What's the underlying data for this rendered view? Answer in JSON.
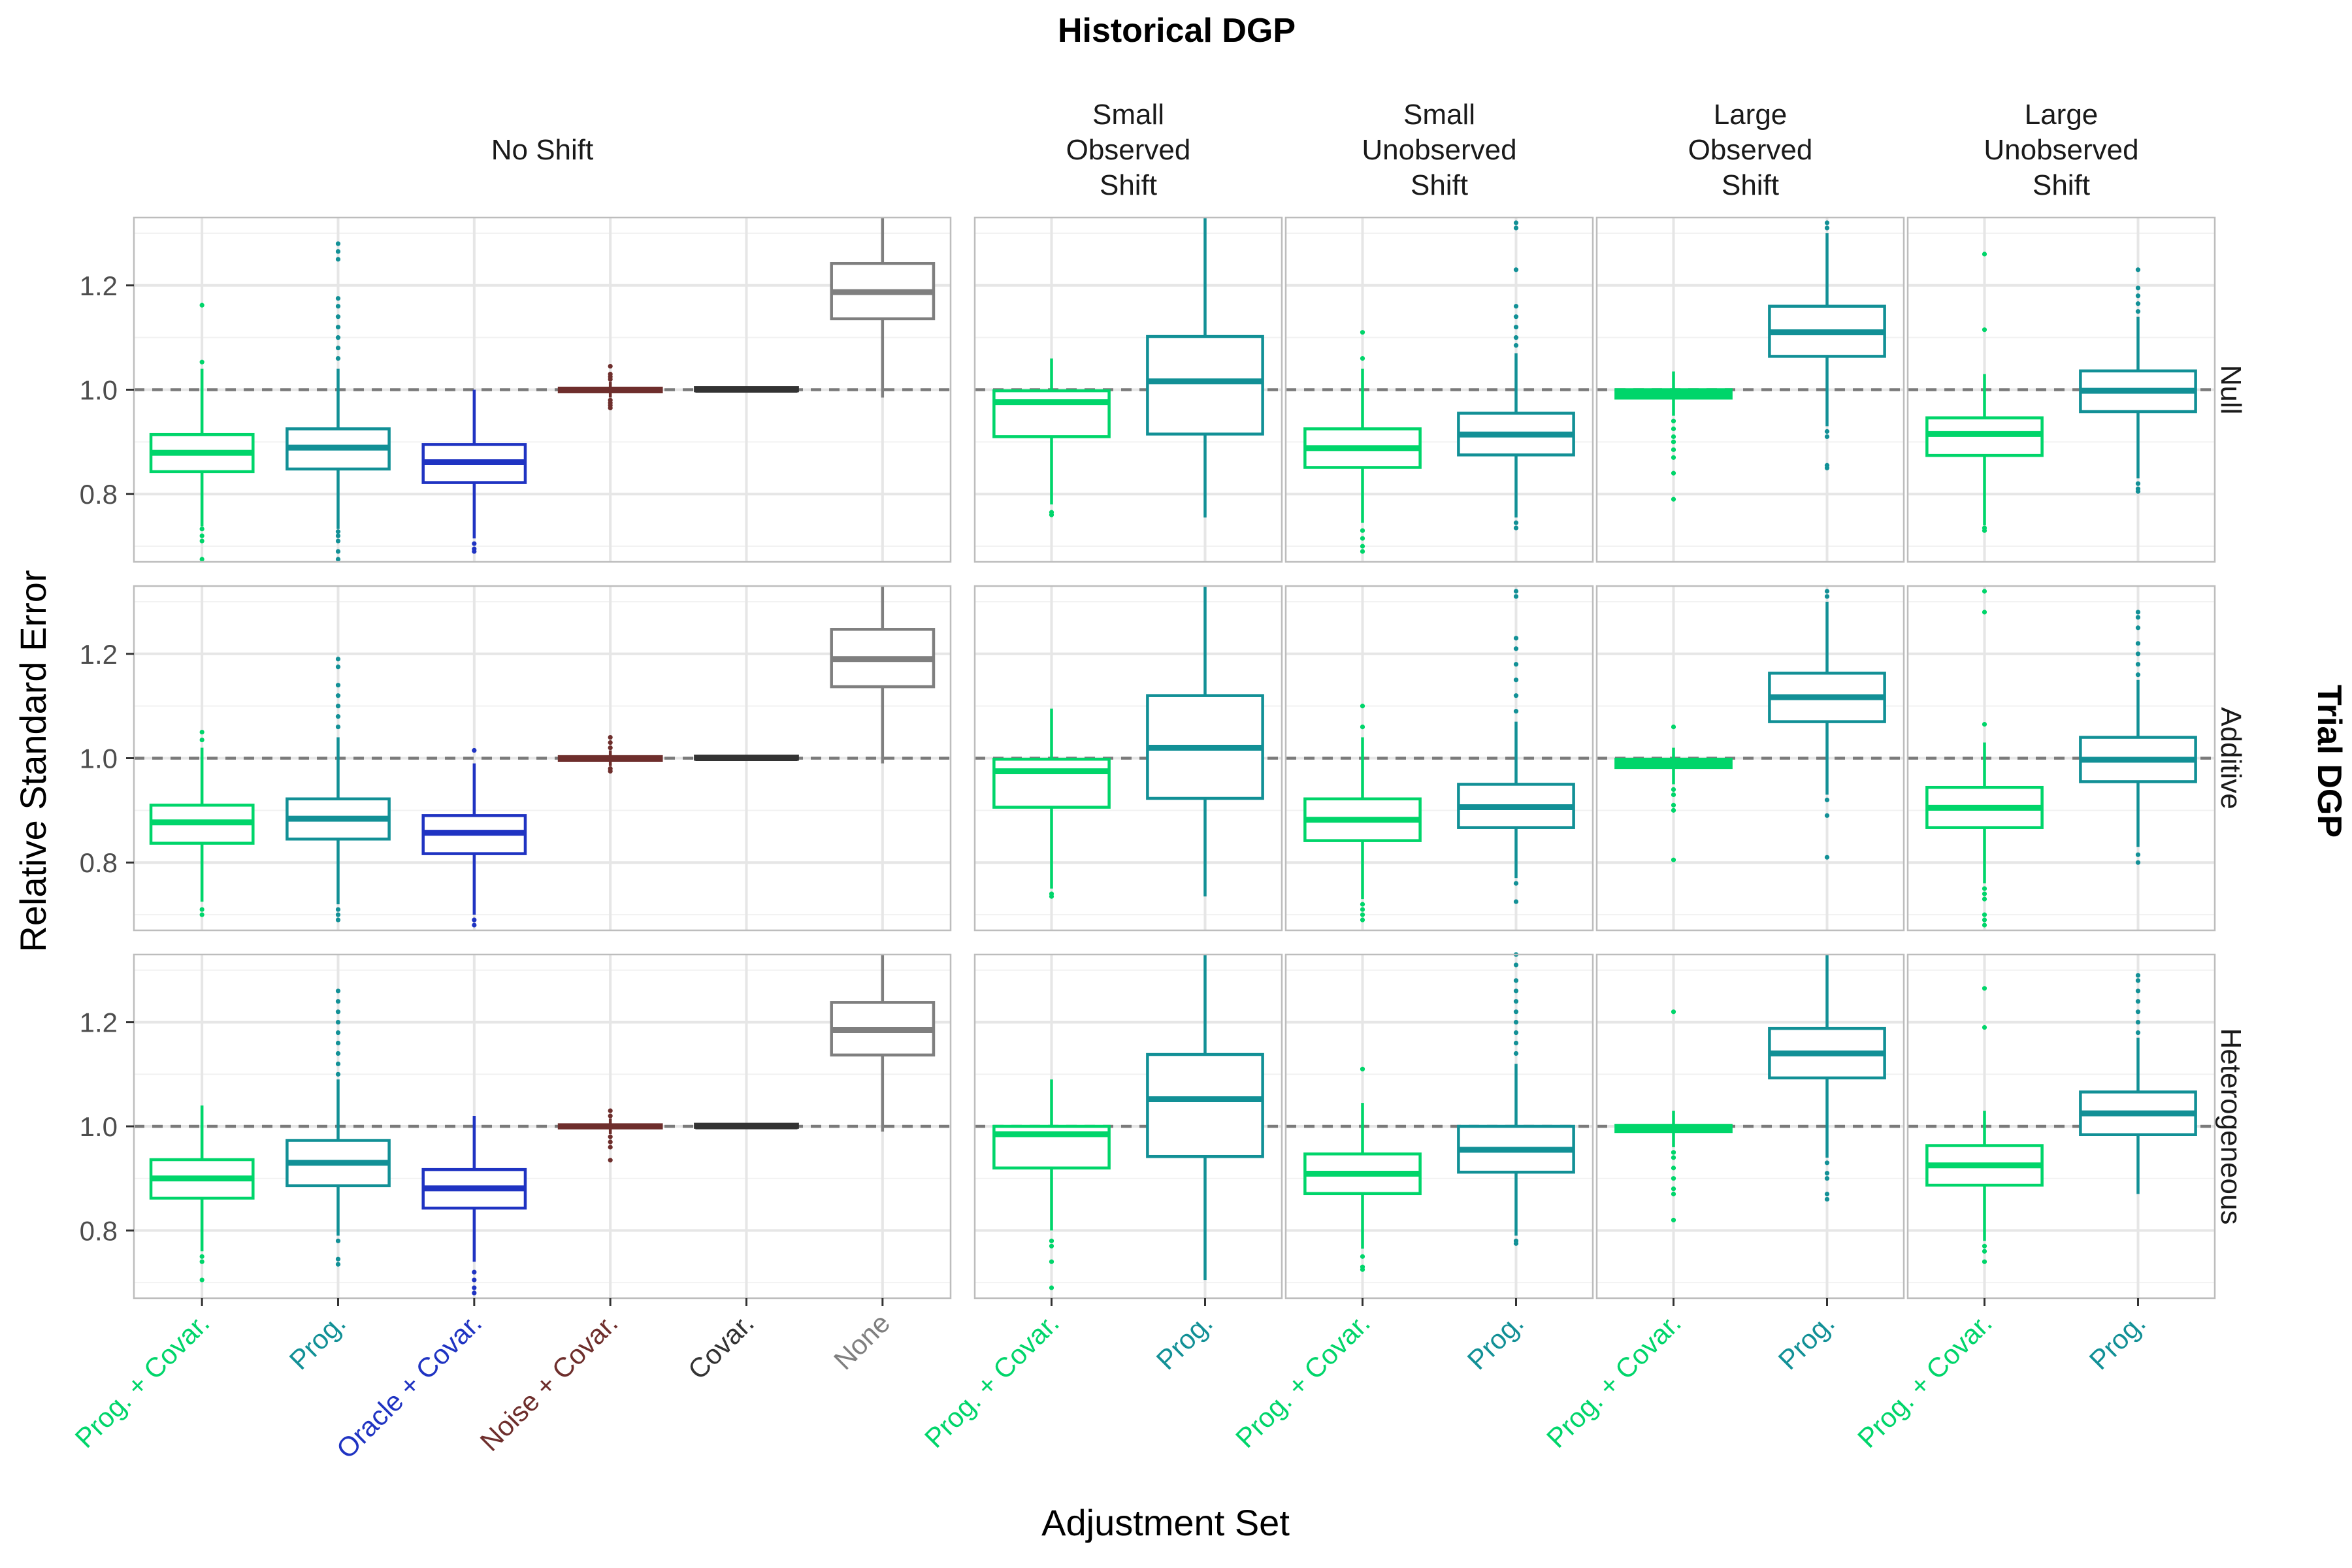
{
  "chart_data": {
    "type": "boxplot",
    "title": "Historical DGP",
    "xlabel": "Adjustment Set",
    "ylabel": "Relative Standard Error",
    "facet_row_title": "Trial DGP",
    "ylim": [
      0.67,
      1.33
    ],
    "yticks": [
      0.8,
      1.0,
      1.2
    ],
    "ytick_labels": [
      "0.8",
      "1.0",
      "1.2"
    ],
    "reference_line": 1.0,
    "colors": {
      "Prog. + Covar.": "#00D56A",
      "Prog.": "#129096",
      "Oracle + Covar.": "#1F33C2",
      "Noise + Covar.": "#6E2E2C",
      "Covar.": "#333333",
      "None": "#7F7F7F"
    },
    "columns": [
      {
        "title_lines": [
          "No Shift"
        ],
        "categories": [
          "Prog. + Covar.",
          "Prog.",
          "Oracle + Covar.",
          "Noise + Covar.",
          "Covar.",
          "None"
        ]
      },
      {
        "title_lines": [
          "Small",
          "Observed",
          "Shift"
        ],
        "categories": [
          "Prog. + Covar.",
          "Prog."
        ]
      },
      {
        "title_lines": [
          "Small",
          "Unobserved",
          "Shift"
        ],
        "categories": [
          "Prog. + Covar.",
          "Prog."
        ]
      },
      {
        "title_lines": [
          "Large",
          "Observed",
          "Shift"
        ],
        "categories": [
          "Prog. + Covar.",
          "Prog."
        ]
      },
      {
        "title_lines": [
          "Large",
          "Unobserved",
          "Shift"
        ],
        "categories": [
          "Prog. + Covar.",
          "Prog."
        ]
      }
    ],
    "rows": [
      "Null",
      "Additive",
      "Heterogeneous"
    ],
    "panels": [
      [
        [
          {
            "q1": 0.843,
            "median": 0.879,
            "q3": 0.914,
            "wlo": 0.738,
            "whi": 1.04,
            "outliers": [
              0.733,
              0.72,
              0.71,
              0.675,
              1.053,
              1.162
            ]
          },
          {
            "q1": 0.848,
            "median": 0.889,
            "q3": 0.925,
            "wlo": 0.733,
            "whi": 1.04,
            "outliers": [
              0.728,
              0.72,
              0.71,
              0.69,
              0.675,
              1.06,
              1.08,
              1.1,
              1.12,
              1.14,
              1.16,
              1.175,
              1.25,
              1.265,
              1.28
            ]
          },
          {
            "q1": 0.822,
            "median": 0.861,
            "q3": 0.895,
            "wlo": 0.715,
            "whi": 1.0,
            "outliers": [
              0.705,
              0.695,
              0.69
            ]
          },
          {
            "q1": 0.996,
            "median": 1.0,
            "q3": 1.003,
            "wlo": 0.985,
            "whi": 1.015,
            "outliers": [
              0.98,
              0.975,
              0.97,
              0.965,
              1.02,
              1.025,
              1.03,
              1.045
            ]
          },
          {
            "q1": 0.998,
            "median": 1.0,
            "q3": 1.004,
            "wlo": 0.998,
            "whi": 1.004,
            "outliers": []
          },
          {
            "q1": 1.136,
            "median": 1.187,
            "q3": 1.242,
            "wlo": 0.985,
            "whi": 1.33,
            "outliers": []
          }
        ],
        [
          {
            "q1": 0.91,
            "median": 0.976,
            "q3": 0.998,
            "wlo": 0.78,
            "whi": 1.06,
            "outliers": [
              0.765,
              0.76
            ]
          },
          {
            "q1": 0.915,
            "median": 1.016,
            "q3": 1.102,
            "wlo": 0.755,
            "whi": 1.33,
            "outliers": []
          }
        ],
        [
          {
            "q1": 0.851,
            "median": 0.888,
            "q3": 0.925,
            "wlo": 0.745,
            "whi": 1.04,
            "outliers": [
              0.73,
              0.715,
              0.7,
              0.69,
              1.06,
              1.11
            ]
          },
          {
            "q1": 0.875,
            "median": 0.914,
            "q3": 0.955,
            "wlo": 0.755,
            "whi": 1.07,
            "outliers": [
              0.745,
              0.735,
              1.085,
              1.1,
              1.12,
              1.14,
              1.16,
              1.23,
              1.31,
              1.32
            ]
          }
        ],
        [
          {
            "q1": 0.984,
            "median": 0.992,
            "q3": 1.0,
            "wlo": 0.95,
            "whi": 1.035,
            "outliers": [
              0.94,
              0.925,
              0.91,
              0.9,
              0.885,
              0.87,
              0.84,
              0.79
            ]
          },
          {
            "q1": 1.064,
            "median": 1.11,
            "q3": 1.16,
            "wlo": 0.93,
            "whi": 1.3,
            "outliers": [
              0.92,
              0.91,
              0.855,
              0.85,
              1.31,
              1.32
            ]
          }
        ],
        [
          {
            "q1": 0.874,
            "median": 0.915,
            "q3": 0.946,
            "wlo": 0.74,
            "whi": 1.03,
            "outliers": [
              0.735,
              0.73,
              1.115,
              1.26
            ]
          },
          {
            "q1": 0.958,
            "median": 0.998,
            "q3": 1.036,
            "wlo": 0.83,
            "whi": 1.14,
            "outliers": [
              0.82,
              0.81,
              0.805,
              1.15,
              1.165,
              1.18,
              1.195,
              1.23
            ]
          }
        ]
      ],
      [
        [
          {
            "q1": 0.837,
            "median": 0.877,
            "q3": 0.91,
            "wlo": 0.725,
            "whi": 1.02,
            "outliers": [
              0.71,
              0.7,
              1.035,
              1.05
            ]
          },
          {
            "q1": 0.845,
            "median": 0.884,
            "q3": 0.922,
            "wlo": 0.72,
            "whi": 1.04,
            "outliers": [
              0.71,
              0.7,
              0.69,
              1.06,
              1.08,
              1.1,
              1.12,
              1.14,
              1.175,
              1.19
            ]
          },
          {
            "q1": 0.817,
            "median": 0.857,
            "q3": 0.89,
            "wlo": 0.7,
            "whi": 0.99,
            "outliers": [
              0.69,
              0.68,
              1.015
            ]
          },
          {
            "q1": 0.996,
            "median": 1.0,
            "q3": 1.003,
            "wlo": 0.985,
            "whi": 1.015,
            "outliers": [
              0.98,
              0.975,
              1.02,
              1.03,
              1.04
            ]
          },
          {
            "q1": 0.998,
            "median": 1.0,
            "q3": 1.004,
            "wlo": 0.998,
            "whi": 1.004,
            "outliers": []
          },
          {
            "q1": 1.137,
            "median": 1.19,
            "q3": 1.247,
            "wlo": 0.99,
            "whi": 1.33,
            "outliers": []
          }
        ],
        [
          {
            "q1": 0.906,
            "median": 0.975,
            "q3": 0.998,
            "wlo": 0.75,
            "whi": 1.095,
            "outliers": [
              0.74,
              0.735
            ]
          },
          {
            "q1": 0.923,
            "median": 1.02,
            "q3": 1.12,
            "wlo": 0.735,
            "whi": 1.33,
            "outliers": []
          }
        ],
        [
          {
            "q1": 0.842,
            "median": 0.882,
            "q3": 0.922,
            "wlo": 0.73,
            "whi": 1.04,
            "outliers": [
              0.72,
              0.71,
              0.7,
              0.69,
              1.06,
              1.1
            ]
          },
          {
            "q1": 0.867,
            "median": 0.906,
            "q3": 0.95,
            "wlo": 0.77,
            "whi": 1.07,
            "outliers": [
              0.76,
              0.725,
              1.09,
              1.12,
              1.15,
              1.18,
              1.21,
              1.23,
              1.31,
              1.32
            ]
          }
        ],
        [
          {
            "q1": 0.982,
            "median": 0.99,
            "q3": 0.998,
            "wlo": 0.95,
            "whi": 1.02,
            "outliers": [
              0.94,
              0.93,
              0.91,
              0.9,
              0.805,
              1.06
            ]
          },
          {
            "q1": 1.07,
            "median": 1.117,
            "q3": 1.163,
            "wlo": 0.93,
            "whi": 1.3,
            "outliers": [
              0.92,
              0.89,
              0.81,
              1.31,
              1.32
            ]
          }
        ],
        [
          {
            "q1": 0.867,
            "median": 0.905,
            "q3": 0.944,
            "wlo": 0.76,
            "whi": 1.03,
            "outliers": [
              0.75,
              0.74,
              0.73,
              0.7,
              0.69,
              0.68,
              1.065,
              1.28,
              1.32
            ]
          },
          {
            "q1": 0.955,
            "median": 0.997,
            "q3": 1.04,
            "wlo": 0.83,
            "whi": 1.15,
            "outliers": [
              0.815,
              0.8,
              1.16,
              1.18,
              1.2,
              1.22,
              1.25,
              1.27,
              1.28
            ]
          }
        ]
      ],
      [
        [
          {
            "q1": 0.862,
            "median": 0.9,
            "q3": 0.936,
            "wlo": 0.76,
            "whi": 1.04,
            "outliers": [
              0.75,
              0.74,
              0.705
            ]
          },
          {
            "q1": 0.886,
            "median": 0.93,
            "q3": 0.973,
            "wlo": 0.79,
            "whi": 1.09,
            "outliers": [
              0.78,
              0.745,
              0.735,
              1.1,
              1.12,
              1.14,
              1.16,
              1.18,
              1.2,
              1.22,
              1.24,
              1.26
            ]
          },
          {
            "q1": 0.843,
            "median": 0.881,
            "q3": 0.917,
            "wlo": 0.74,
            "whi": 1.02,
            "outliers": [
              0.72,
              0.705,
              0.69,
              0.68
            ]
          },
          {
            "q1": 0.997,
            "median": 1.0,
            "q3": 1.003,
            "wlo": 0.985,
            "whi": 1.015,
            "outliers": [
              0.98,
              0.97,
              0.96,
              0.935,
              1.02,
              1.03
            ]
          },
          {
            "q1": 0.998,
            "median": 1.0,
            "q3": 1.004,
            "wlo": 0.998,
            "whi": 1.004,
            "outliers": []
          },
          {
            "q1": 1.137,
            "median": 1.185,
            "q3": 1.238,
            "wlo": 0.99,
            "whi": 1.33,
            "outliers": []
          }
        ],
        [
          {
            "q1": 0.92,
            "median": 0.985,
            "q3": 1.0,
            "wlo": 0.8,
            "whi": 1.09,
            "outliers": [
              0.78,
              0.77,
              0.74,
              0.69
            ]
          },
          {
            "q1": 0.942,
            "median": 1.052,
            "q3": 1.138,
            "wlo": 0.705,
            "whi": 1.33,
            "outliers": []
          }
        ],
        [
          {
            "q1": 0.871,
            "median": 0.909,
            "q3": 0.947,
            "wlo": 0.765,
            "whi": 1.045,
            "outliers": [
              0.75,
              0.73,
              0.725,
              1.11
            ]
          },
          {
            "q1": 0.912,
            "median": 0.955,
            "q3": 1.0,
            "wlo": 0.79,
            "whi": 1.12,
            "outliers": [
              0.78,
              0.775,
              1.14,
              1.16,
              1.18,
              1.2,
              1.22,
              1.24,
              1.26,
              1.28,
              1.31,
              1.33
            ]
          }
        ],
        [
          {
            "q1": 0.99,
            "median": 0.996,
            "q3": 1.002,
            "wlo": 0.96,
            "whi": 1.03,
            "outliers": [
              0.95,
              0.94,
              0.92,
              0.9,
              0.88,
              0.87,
              0.82,
              1.22
            ]
          },
          {
            "q1": 1.093,
            "median": 1.14,
            "q3": 1.188,
            "wlo": 0.94,
            "whi": 1.33,
            "outliers": [
              0.93,
              0.91,
              0.9,
              0.87,
              0.86
            ]
          }
        ],
        [
          {
            "q1": 0.887,
            "median": 0.925,
            "q3": 0.963,
            "wlo": 0.78,
            "whi": 1.03,
            "outliers": [
              0.77,
              0.76,
              0.74,
              1.19,
              1.265
            ]
          },
          {
            "q1": 0.984,
            "median": 1.025,
            "q3": 1.066,
            "wlo": 0.87,
            "whi": 1.17,
            "outliers": [
              1.18,
              1.2,
              1.22,
              1.24,
              1.26,
              1.28,
              1.29
            ]
          }
        ]
      ]
    ]
  }
}
